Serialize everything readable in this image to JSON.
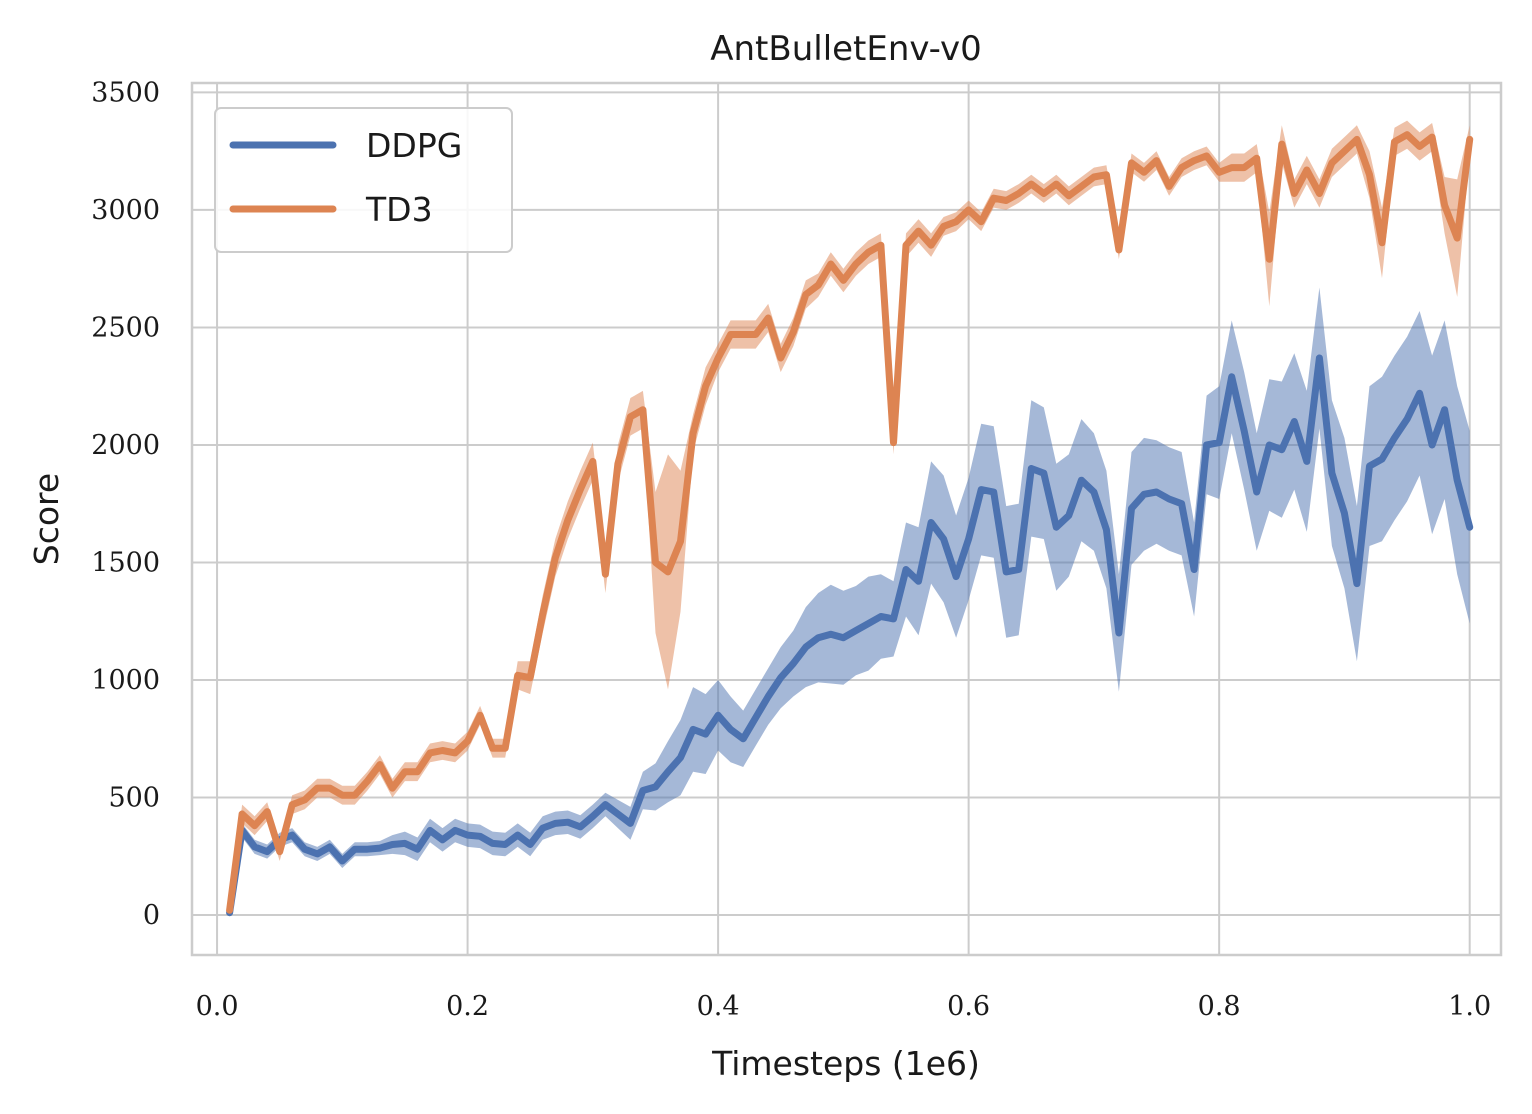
{
  "chart_data": {
    "type": "line",
    "title": "AntBulletEnv-v0",
    "xlabel": "Timesteps (1e6)",
    "ylabel": "Score",
    "xlim": [
      -0.02,
      1.025
    ],
    "ylim": [
      -170,
      3540
    ],
    "xticks": [
      "0.0",
      "0.2",
      "0.4",
      "0.6",
      "0.8",
      "1.0"
    ],
    "yticks": [
      "0",
      "500",
      "1000",
      "1500",
      "2000",
      "2500",
      "3000",
      "3500"
    ],
    "grid": true,
    "legend_position": "top-left",
    "x": [
      0.01,
      0.02,
      0.03,
      0.04,
      0.05,
      0.06,
      0.07,
      0.08,
      0.09,
      0.1,
      0.11,
      0.12,
      0.13,
      0.14,
      0.15,
      0.16,
      0.17,
      0.18,
      0.19,
      0.2,
      0.21,
      0.22,
      0.23,
      0.24,
      0.25,
      0.26,
      0.27,
      0.28,
      0.29,
      0.3,
      0.31,
      0.32,
      0.33,
      0.34,
      0.35,
      0.36,
      0.37,
      0.38,
      0.39,
      0.4,
      0.41,
      0.42,
      0.43,
      0.44,
      0.45,
      0.46,
      0.47,
      0.48,
      0.49,
      0.5,
      0.51,
      0.52,
      0.53,
      0.54,
      0.55,
      0.56,
      0.57,
      0.58,
      0.59,
      0.6,
      0.61,
      0.62,
      0.63,
      0.64,
      0.65,
      0.66,
      0.67,
      0.68,
      0.69,
      0.7,
      0.71,
      0.72,
      0.73,
      0.74,
      0.75,
      0.76,
      0.77,
      0.78,
      0.79,
      0.8,
      0.81,
      0.82,
      0.83,
      0.84,
      0.85,
      0.86,
      0.87,
      0.88,
      0.89,
      0.9,
      0.91,
      0.92,
      0.93,
      0.94,
      0.95,
      0.96,
      0.97,
      0.98,
      0.99,
      1.0
    ],
    "series": [
      {
        "name": "DDPG",
        "color": "#4c72b0",
        "values": [
          10,
          360,
          290,
          270,
          320,
          340,
          280,
          260,
          290,
          230,
          280,
          280,
          285,
          300,
          305,
          280,
          360,
          320,
          360,
          340,
          335,
          305,
          300,
          340,
          300,
          370,
          390,
          395,
          375,
          420,
          470,
          430,
          390,
          530,
          545,
          610,
          670,
          790,
          770,
          850,
          790,
          750,
          840,
          930,
          1010,
          1070,
          1140,
          1180,
          1195,
          1180,
          1210,
          1240,
          1270,
          1260,
          1470,
          1420,
          1670,
          1600,
          1440,
          1600,
          1810,
          1800,
          1460,
          1470,
          1900,
          1880,
          1650,
          1700,
          1850,
          1800,
          1640,
          1200,
          1730,
          1790,
          1800,
          1770,
          1750,
          1470,
          2000,
          2010,
          2290,
          2060,
          1800,
          2000,
          1980,
          2100,
          1930,
          2370,
          1880,
          1710,
          1410,
          1910,
          1940,
          2030,
          2110,
          2220,
          2000,
          2150,
          1850,
          1650
        ],
        "band_halfwidth": [
          10,
          30,
          30,
          30,
          30,
          30,
          30,
          30,
          30,
          30,
          30,
          30,
          30,
          40,
          50,
          50,
          50,
          50,
          50,
          50,
          50,
          50,
          50,
          50,
          50,
          50,
          50,
          50,
          50,
          50,
          50,
          60,
          70,
          80,
          100,
          130,
          160,
          180,
          170,
          150,
          140,
          120,
          120,
          120,
          130,
          140,
          170,
          190,
          210,
          200,
          190,
          200,
          180,
          160,
          200,
          230,
          260,
          270,
          260,
          260,
          280,
          280,
          280,
          280,
          290,
          280,
          270,
          260,
          260,
          250,
          250,
          250,
          240,
          240,
          220,
          220,
          220,
          200,
          210,
          240,
          240,
          250,
          250,
          280,
          290,
          290,
          300,
          300,
          310,
          320,
          330,
          340,
          350,
          350,
          350,
          350,
          380,
          380,
          400,
          410
        ]
      },
      {
        "name": "TD3",
        "color": "#dd8452",
        "values": [
          20,
          430,
          380,
          440,
          270,
          470,
          490,
          540,
          540,
          510,
          510,
          570,
          640,
          540,
          610,
          610,
          690,
          700,
          690,
          740,
          850,
          710,
          710,
          1020,
          1010,
          1280,
          1520,
          1680,
          1810,
          1930,
          1450,
          1920,
          2120,
          2150,
          1500,
          1460,
          1590,
          2050,
          2250,
          2370,
          2470,
          2470,
          2470,
          2540,
          2370,
          2480,
          2640,
          2680,
          2770,
          2700,
          2770,
          2820,
          2850,
          2010,
          2850,
          2910,
          2850,
          2930,
          2950,
          3000,
          2950,
          3050,
          3040,
          3070,
          3110,
          3070,
          3110,
          3060,
          3100,
          3140,
          3150,
          2830,
          3200,
          3160,
          3210,
          3100,
          3180,
          3210,
          3230,
          3160,
          3180,
          3180,
          3220,
          2790,
          3280,
          3070,
          3170,
          3070,
          3200,
          3250,
          3300,
          3150,
          2860,
          3290,
          3320,
          3270,
          3310,
          3020,
          2880,
          3300
        ],
        "band_halfwidth": [
          10,
          40,
          40,
          40,
          40,
          40,
          40,
          40,
          40,
          40,
          40,
          40,
          40,
          40,
          40,
          40,
          40,
          40,
          40,
          40,
          40,
          40,
          40,
          60,
          70,
          80,
          80,
          80,
          80,
          80,
          80,
          80,
          80,
          80,
          300,
          500,
          300,
          80,
          80,
          60,
          60,
          60,
          60,
          60,
          60,
          60,
          60,
          50,
          50,
          50,
          50,
          50,
          50,
          50,
          50,
          50,
          50,
          40,
          40,
          40,
          40,
          40,
          40,
          40,
          40,
          40,
          40,
          40,
          40,
          40,
          40,
          40,
          40,
          40,
          40,
          40,
          40,
          40,
          40,
          40,
          60,
          60,
          60,
          200,
          80,
          60,
          60,
          60,
          60,
          60,
          60,
          100,
          150,
          60,
          60,
          60,
          60,
          120,
          250,
          60
        ]
      }
    ]
  }
}
